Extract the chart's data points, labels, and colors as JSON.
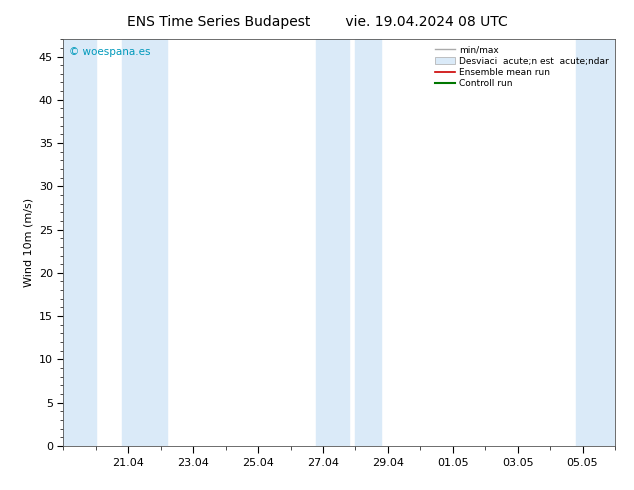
{
  "title_left": "ENS Time Series Budapest",
  "title_right": "vie. 19.04.2024 08 UTC",
  "ylabel": "Wind 10m (m/s)",
  "watermark": "© woespana.es",
  "watermark_color": "#0099bb",
  "ylim": [
    0,
    47
  ],
  "yticks": [
    0,
    5,
    10,
    15,
    20,
    25,
    30,
    35,
    40,
    45
  ],
  "background_color": "#ffffff",
  "plot_bg_color": "#ffffff",
  "band_color": "#daeaf8",
  "xtick_labels": [
    "21.04",
    "23.04",
    "25.04",
    "27.04",
    "29.04",
    "01.05",
    "03.05",
    "05.05"
  ],
  "xlim": [
    0,
    17
  ],
  "shade_bands": [
    [
      0,
      1.0
    ],
    [
      1.8,
      3.2
    ],
    [
      7.8,
      8.8
    ],
    [
      9.0,
      9.8
    ],
    [
      15.8,
      17.0
    ]
  ],
  "legend_line1": "min/max",
  "legend_line2": "Desviaci  acute;n est  acute;ndar",
  "legend_line3": "Ensemble mean run",
  "legend_line4": "Controll run",
  "title_fontsize": 10,
  "axis_fontsize": 8,
  "tick_fontsize": 8
}
